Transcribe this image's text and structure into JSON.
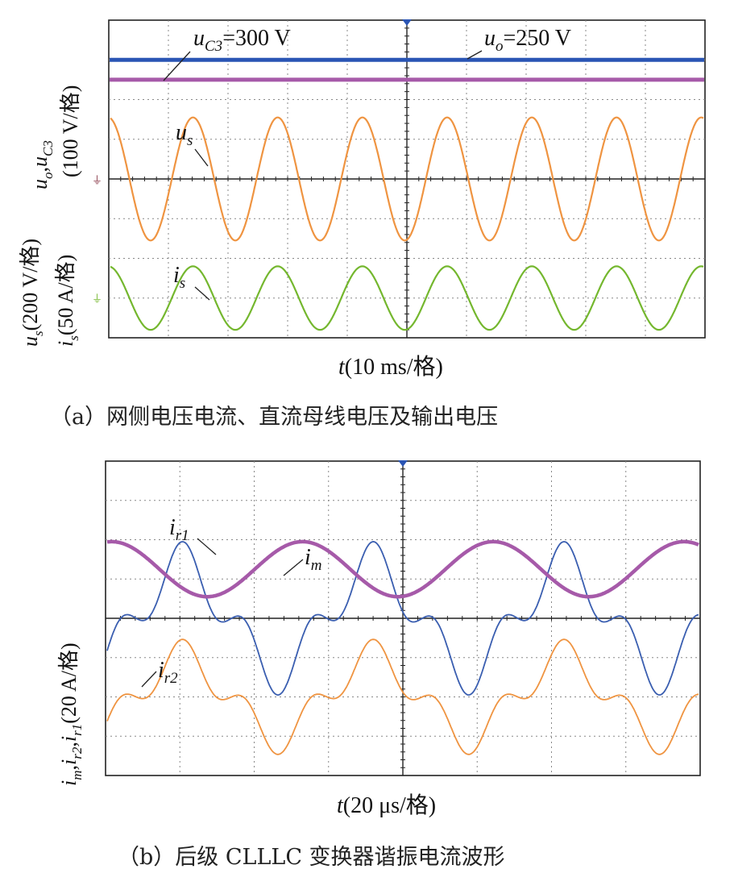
{
  "chart_data": [
    {
      "id": "a",
      "type": "line",
      "caption": "（a）网侧电压电流、直流母线电压及输出电压",
      "xlabel": {
        "var": "t",
        "rest": "(10 ms/格)"
      },
      "divisions": {
        "x": 10,
        "y": 8
      },
      "ylabel_top": {
        "v1": "u",
        "s1": "o",
        "sep": ",",
        "v2": "u",
        "s2": "C3",
        "scale": "(100 V/格)"
      },
      "ylabel_bottom_1": {
        "v": "u",
        "s": "s",
        "scale": "(200 V/格)"
      },
      "ylabel_bottom_2": {
        "v": "i",
        "s": "s",
        "scale": "(50 A/格)"
      },
      "series": [
        {
          "name": "uC3",
          "label_var": "u",
          "label_sub": "C3",
          "label_rest": "=300 V",
          "color": "#2a55b4",
          "level_div": 3.0,
          "ref_div": 0
        },
        {
          "name": "uo",
          "label_var": "u",
          "label_sub": "o",
          "label_rest": "=250 V",
          "color": "#a65aa9",
          "level_div": 2.5,
          "ref_div": 0
        },
        {
          "name": "us",
          "label_var": "u",
          "label_sub": "s",
          "color": "#ef9441",
          "cycles": 7,
          "amp_div": 1.55,
          "ref_div": 0
        },
        {
          "name": "is",
          "label_var": "i",
          "label_sub": "s",
          "color": "#74b72e",
          "cycles": 7,
          "amp_div": 0.8,
          "ref_div": -3.0
        }
      ]
    },
    {
      "id": "b",
      "type": "line",
      "caption": "（b）后级 CLLLC 变换器谐振电流波形",
      "xlabel": {
        "var": "t",
        "rest": "(20 μs/格)"
      },
      "divisions": {
        "x": 8,
        "y": 8
      },
      "ylabel": {
        "v1": "i",
        "s1": "m",
        "v2": "i",
        "s2": "r2",
        "v3": "i",
        "s3": "r1",
        "scale": "(20 A/格)"
      },
      "series": [
        {
          "name": "ir1",
          "label_var": "i",
          "label_sub": "r1",
          "color": "#3a5eb0",
          "cycles": 3.1,
          "amp_div": 1.35,
          "h3_div": 0.6,
          "ref_div": 0
        },
        {
          "name": "im",
          "label_var": "i",
          "label_sub": "m",
          "color": "#a65aa9",
          "cycles": 3.1,
          "amp_div": 0.7,
          "ref_div": 1.25
        },
        {
          "name": "ir2",
          "label_var": "i",
          "label_sub": "r2",
          "color": "#ef9441",
          "cycles": 3.1,
          "amp_div": 1.35,
          "h3_div": 0.6,
          "ref_div": -2.0
        }
      ]
    }
  ]
}
